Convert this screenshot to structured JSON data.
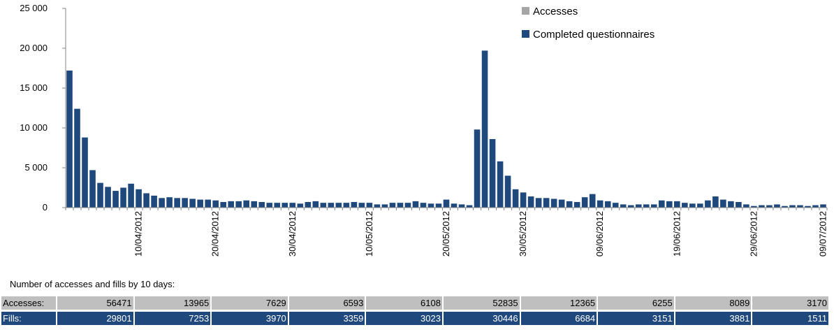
{
  "chart_data": {
    "type": "bar",
    "yticks": [
      "0",
      "5 000",
      "10 000",
      "15 000",
      "20 000",
      "25 000"
    ],
    "ylim": [
      0,
      25000
    ],
    "xtick_labels": [
      "10/04/2012",
      "20/04/2012",
      "30/04/2012",
      "10/05/2012",
      "20/05/2012",
      "30/05/2012",
      "09/06/2012",
      "19/06/2012",
      "29/06/2012",
      "09/07/2012"
    ],
    "legend_position": "top-right",
    "series": [
      {
        "name": "Accesses",
        "color": "#a6a6a6",
        "values": []
      },
      {
        "name": "Completed questionnaires",
        "color": "#1f497d",
        "values": [
          17200,
          12400,
          8800,
          4700,
          3100,
          2600,
          2100,
          2500,
          3000,
          2300,
          1800,
          1500,
          1200,
          1300,
          1200,
          1200,
          1100,
          1000,
          1000,
          900,
          700,
          800,
          800,
          900,
          800,
          700,
          600,
          600,
          600,
          600,
          500,
          700,
          800,
          600,
          600,
          600,
          600,
          700,
          600,
          600,
          400,
          400,
          600,
          600,
          600,
          800,
          600,
          500,
          500,
          1000,
          500,
          400,
          300,
          9800,
          19700,
          8600,
          5800,
          4000,
          2300,
          1900,
          1400,
          1200,
          1200,
          1100,
          1000,
          800,
          700,
          1300,
          1700,
          900,
          800,
          600,
          400,
          300,
          400,
          400,
          400,
          900,
          800,
          800,
          600,
          500,
          500,
          900,
          1400,
          1000,
          800,
          700,
          400,
          200,
          300,
          300,
          400,
          200,
          300,
          300,
          200,
          300,
          400
        ]
      }
    ]
  },
  "summary": {
    "caption": "Number of accesses and fills by 10 days:",
    "accesses_label": "Accesses:",
    "fills_label": "Fills:",
    "accesses": [
      "56471",
      "13965",
      "7629",
      "6593",
      "6108",
      "52835",
      "12365",
      "6255",
      "8089",
      "3170"
    ],
    "fills": [
      "29801",
      "7253",
      "3970",
      "3359",
      "3023",
      "30446",
      "6684",
      "3151",
      "3881",
      "1511"
    ]
  }
}
